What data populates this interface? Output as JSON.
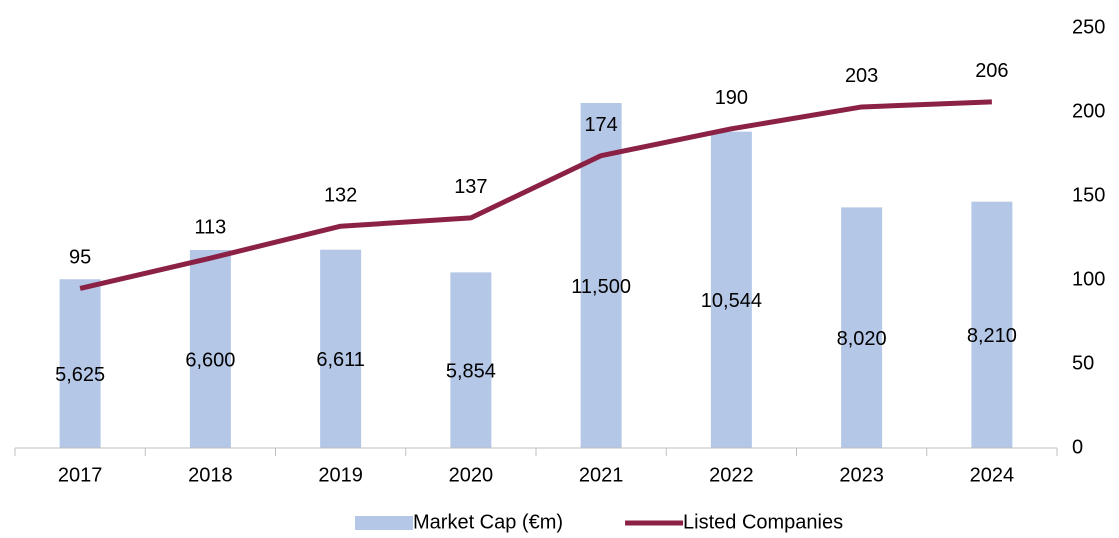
{
  "chart_data": {
    "type": "bar-line",
    "categories": [
      "2017",
      "2018",
      "2019",
      "2020",
      "2021",
      "2022",
      "2023",
      "2024"
    ],
    "series": [
      {
        "name": "Market Cap (€m)",
        "type": "bar",
        "color": "#b4c7e7",
        "values": [
          5625,
          6600,
          6611,
          5854,
          11500,
          10544,
          8020,
          8210
        ],
        "value_labels": [
          "5,625",
          "6,600",
          "6,611",
          "5,854",
          "11,500",
          "10,544",
          "8,020",
          "8,210"
        ]
      },
      {
        "name": "Listed Companies",
        "type": "line",
        "color": "#8b2245",
        "axis": "y2",
        "values": [
          95,
          113,
          132,
          137,
          174,
          190,
          203,
          206
        ]
      }
    ],
    "ylim": [
      0,
      14000
    ],
    "y2lim": [
      0,
      250
    ],
    "y2ticks": [
      0,
      50,
      100,
      150,
      200,
      250
    ],
    "legend": "bottom"
  }
}
